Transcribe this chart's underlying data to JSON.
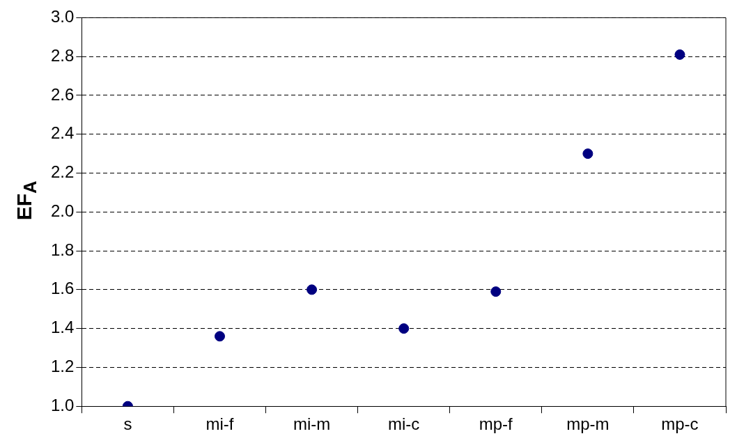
{
  "chart_data": {
    "type": "scatter",
    "ylabel": "EF$_{A}$",
    "categories": [
      "s",
      "mi-f",
      "mi-m",
      "mi-c",
      "mp-f",
      "mp-m",
      "mp-c"
    ],
    "series": [
      {
        "color": "#000080",
        "values": [
          1.0,
          1.36,
          1.6,
          1.4,
          1.59,
          2.3,
          2.81
        ]
      }
    ],
    "ylim": [
      1.0,
      3.0
    ],
    "yticks": [
      {
        "value": 1.0,
        "label": "1.0"
      },
      {
        "value": 1.2,
        "label": "1.2"
      },
      {
        "value": 1.4,
        "label": "1.4"
      },
      {
        "value": 1.6,
        "label": "1.6"
      },
      {
        "value": 1.8,
        "label": "1.8"
      },
      {
        "value": 2.0,
        "label": "2.0"
      },
      {
        "value": 2.2,
        "label": "2.2"
      },
      {
        "value": 2.4,
        "label": "2.4"
      },
      {
        "value": 2.6,
        "label": "2.6"
      },
      {
        "value": 2.8,
        "label": "2.8"
      },
      {
        "value": 3.0,
        "label": "3.0"
      }
    ],
    "grid": "y",
    "line_style": "dashed",
    "marker": "circle",
    "legend": false
  }
}
